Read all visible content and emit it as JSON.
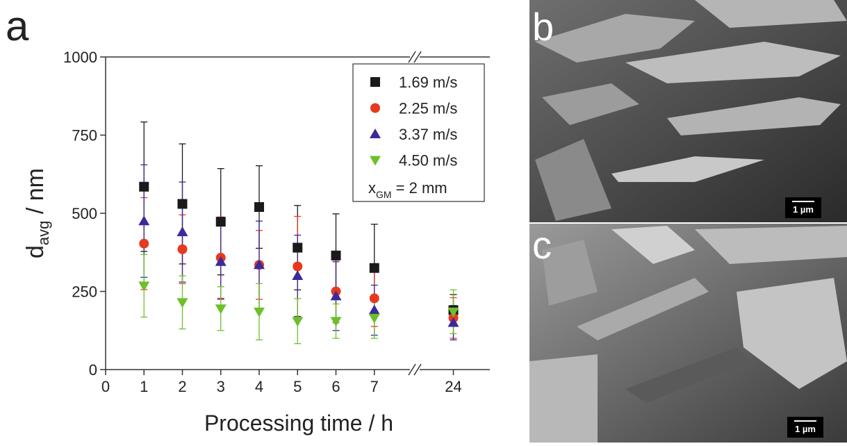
{
  "chart_data": {
    "type": "scatter",
    "panel_label": "a",
    "x_label": "Processing time / h",
    "y_label": {
      "main": "d",
      "sub": "avg",
      "rest": " / nm"
    },
    "x": [
      1,
      2,
      3,
      4,
      5,
      6,
      7,
      24
    ],
    "xlim": [
      0,
      25
    ],
    "x_break": [
      8,
      23
    ],
    "xticks": [
      0,
      1,
      2,
      3,
      4,
      5,
      6,
      7,
      24
    ],
    "ylim": [
      0,
      1000
    ],
    "yticks": [
      0,
      250,
      500,
      750,
      1000
    ],
    "series": [
      {
        "name": "1.69 m/s",
        "color": "#1a1a1a",
        "marker": "square",
        "values": [
          585,
          530,
          473,
          520,
          390,
          365,
          325,
          190
        ],
        "errors": [
          207,
          192,
          170,
          132,
          135,
          133,
          140,
          50
        ]
      },
      {
        "name": "2.25 m/s",
        "color": "#e8391e",
        "marker": "circle",
        "values": [
          403,
          385,
          358,
          335,
          330,
          250,
          228,
          165
        ],
        "errors": [
          147,
          110,
          130,
          110,
          160,
          100,
          90,
          65
        ]
      },
      {
        "name": "3.37 m/s",
        "color": "#3b2b9a",
        "marker": "triangle-up",
        "values": [
          475,
          440,
          345,
          335,
          300,
          235,
          190,
          150
        ],
        "errors": [
          180,
          160,
          120,
          140,
          130,
          110,
          80,
          55
        ]
      },
      {
        "name": "4.50 m/s",
        "color": "#6cc02a",
        "marker": "triangle-down",
        "values": [
          268,
          215,
          195,
          185,
          155,
          155,
          165,
          185
        ],
        "errors": [
          100,
          85,
          70,
          90,
          72,
          55,
          65,
          70
        ]
      }
    ],
    "annotation": {
      "main": "x",
      "sub": "GM",
      "rest": " = 2 mm"
    }
  },
  "images": [
    {
      "panel_label": "b",
      "scale_bar": "1 µm"
    },
    {
      "panel_label": "c",
      "scale_bar": "1 µm"
    }
  ]
}
